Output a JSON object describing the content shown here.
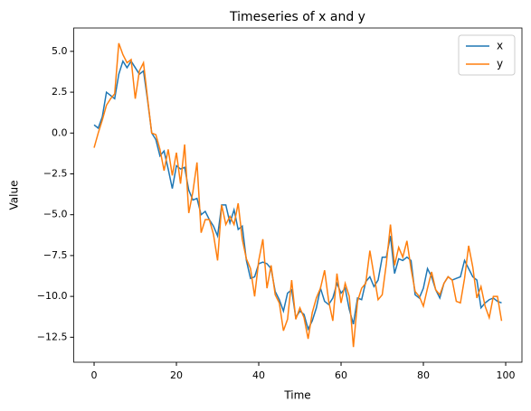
{
  "chart_data": {
    "type": "line",
    "title": "Timeseries of x and y",
    "x_label": "Time",
    "y_label": "Value",
    "x": [
      0,
      1,
      2,
      3,
      4,
      5,
      6,
      7,
      8,
      9,
      10,
      11,
      12,
      13,
      14,
      15,
      16,
      17,
      18,
      19,
      20,
      21,
      22,
      23,
      24,
      25,
      26,
      27,
      28,
      29,
      30,
      31,
      32,
      33,
      34,
      35,
      36,
      37,
      38,
      39,
      40,
      41,
      42,
      43,
      44,
      45,
      46,
      47,
      48,
      49,
      50,
      51,
      52,
      53,
      54,
      55,
      56,
      57,
      58,
      59,
      60,
      61,
      62,
      63,
      64,
      65,
      66,
      67,
      68,
      69,
      70,
      71,
      72,
      73,
      74,
      75,
      76,
      77,
      78,
      79,
      80,
      81,
      82,
      83,
      84,
      85,
      86,
      87,
      88,
      89,
      90,
      91,
      92,
      93,
      94,
      95,
      96,
      97,
      98,
      99
    ],
    "series": [
      {
        "name": "x",
        "color": "#1f77b4",
        "values": [
          0.5,
          0.3,
          1.0,
          2.5,
          2.3,
          2.1,
          3.6,
          4.4,
          4.0,
          4.4,
          4.0,
          3.6,
          3.8,
          2.0,
          0.0,
          -0.4,
          -1.4,
          -1.1,
          -2.2,
          -3.4,
          -2.0,
          -2.2,
          -2.1,
          -3.5,
          -4.1,
          -4.0,
          -5.0,
          -4.8,
          -5.3,
          -5.7,
          -6.3,
          -4.4,
          -4.4,
          -5.5,
          -4.7,
          -5.9,
          -5.7,
          -7.8,
          -8.9,
          -8.8,
          -8.0,
          -7.9,
          -8.0,
          -8.3,
          -9.7,
          -10.2,
          -10.9,
          -9.8,
          -9.6,
          -11.3,
          -10.9,
          -11.1,
          -12.0,
          -11.5,
          -10.7,
          -9.5,
          -10.3,
          -10.5,
          -10.1,
          -9.2,
          -9.8,
          -9.5,
          -10.8,
          -11.7,
          -10.1,
          -10.2,
          -9.1,
          -8.8,
          -9.4,
          -9.0,
          -7.6,
          -7.6,
          -6.3,
          -8.6,
          -7.7,
          -7.8,
          -7.6,
          -7.8,
          -9.9,
          -10.1,
          -9.5,
          -8.3,
          -8.8,
          -9.6,
          -10.1,
          -9.2,
          -8.8,
          -9.0,
          -8.9,
          -8.8,
          -7.8,
          -8.3,
          -8.8,
          -9.0,
          -10.7,
          -10.4,
          -10.2,
          -10.1,
          -10.3,
          -10.4
        ]
      },
      {
        "name": "y",
        "color": "#ff7f0e",
        "values": [
          -0.9,
          0.0,
          0.8,
          1.7,
          2.1,
          2.4,
          5.5,
          4.8,
          4.3,
          4.5,
          2.1,
          3.8,
          4.3,
          2.1,
          0.0,
          -0.1,
          -1.0,
          -2.3,
          -1.0,
          -2.6,
          -1.2,
          -3.1,
          -0.7,
          -4.9,
          -3.6,
          -1.8,
          -6.1,
          -5.3,
          -5.3,
          -6.2,
          -7.8,
          -4.4,
          -5.6,
          -5.1,
          -5.6,
          -4.3,
          -6.5,
          -7.7,
          -8.3,
          -10.0,
          -7.8,
          -6.5,
          -9.5,
          -8.1,
          -9.9,
          -10.4,
          -12.1,
          -11.4,
          -9.0,
          -11.4,
          -10.7,
          -11.3,
          -12.6,
          -11.0,
          -10.1,
          -9.5,
          -8.4,
          -10.3,
          -11.5,
          -8.6,
          -10.4,
          -9.2,
          -10.0,
          -13.1,
          -10.3,
          -9.5,
          -9.2,
          -7.2,
          -8.7,
          -10.2,
          -9.9,
          -8.0,
          -5.6,
          -8.1,
          -7.0,
          -7.6,
          -6.6,
          -8.3,
          -9.7,
          -10.0,
          -10.6,
          -9.5,
          -8.5,
          -9.6,
          -9.9,
          -9.2,
          -8.8,
          -9.0,
          -10.3,
          -10.4,
          -8.9,
          -6.9,
          -8.2,
          -10.1,
          -9.4,
          -10.6,
          -11.3,
          -10.0,
          -10.0,
          -11.5
        ]
      }
    ],
    "xlim": [
      -4.95,
      103.95
    ],
    "xticks": [
      0,
      20,
      40,
      60,
      80,
      100
    ],
    "ylim": [
      -14.03,
      6.43
    ],
    "yticks": [
      {
        "value": -12.5,
        "label": "−12.5"
      },
      {
        "value": -10,
        "label": "−10.0"
      },
      {
        "value": -7.5,
        "label": "−7.5"
      },
      {
        "value": -5,
        "label": "−5.0"
      },
      {
        "value": -2.5,
        "label": "−2.5"
      },
      {
        "value": 0,
        "label": "0.0"
      },
      {
        "value": 2.5,
        "label": "2.5"
      },
      {
        "value": 5,
        "label": "5.0"
      }
    ],
    "legend": "upper right"
  }
}
